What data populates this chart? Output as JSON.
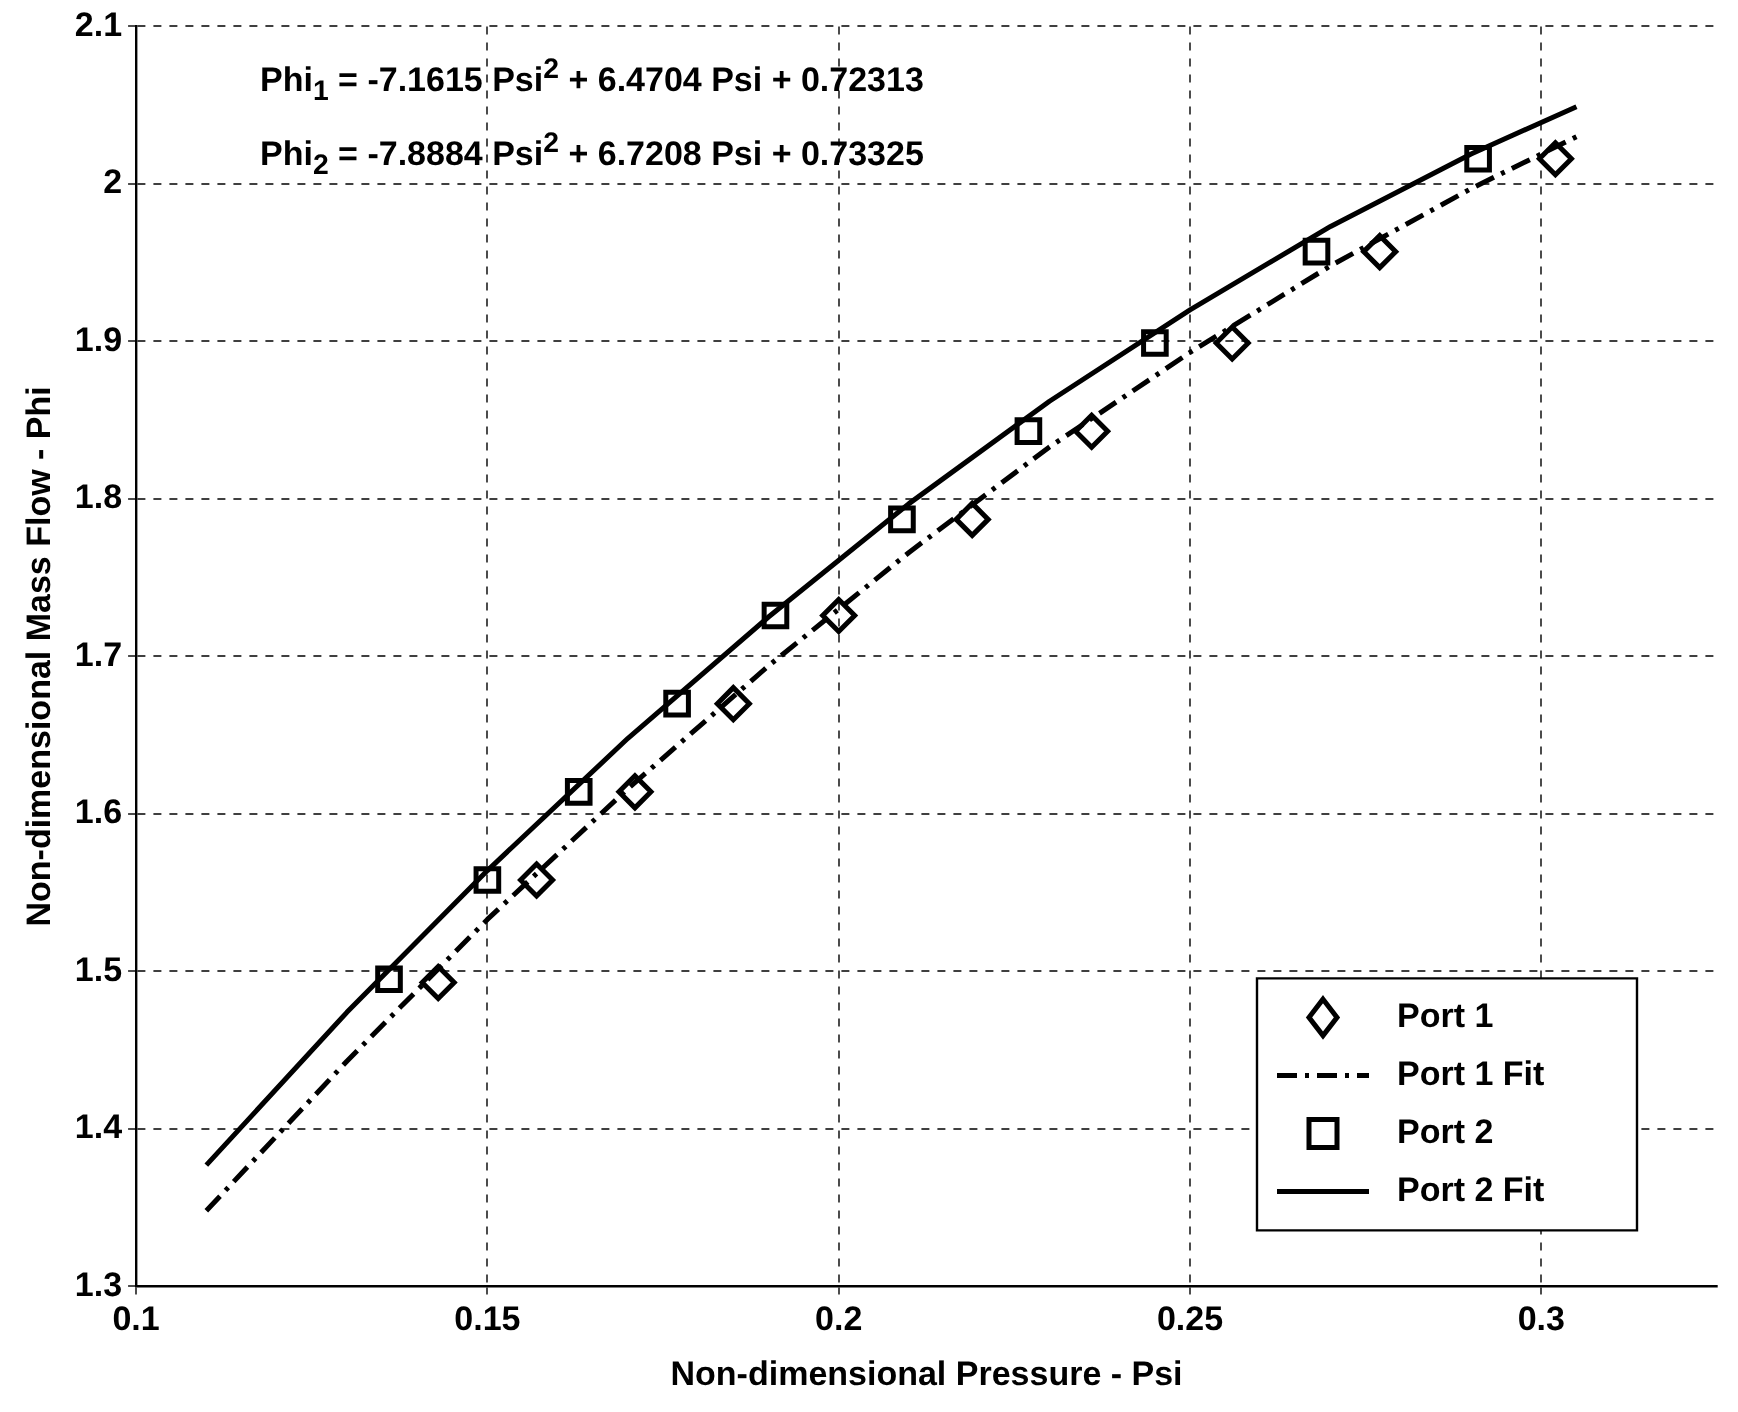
{
  "chart_data": {
    "type": "scatter",
    "xlabel": "Non-dimensional Pressure - Psi",
    "ylabel": "Non-dimensional Mass Flow - Phi",
    "annotations": [
      "Phi$_{1}$ = -7.1615 Psi$^{2}$ + 6.4704 Psi + 0.72313",
      "Phi$_{2}$ = -7.8884 Psi$^{2}$ + 6.7208 Psi + 0.73325"
    ],
    "series": [
      {
        "name": "Port 1",
        "type": "scatter",
        "marker": "diamond",
        "color": "#000000",
        "x": [
          0.143,
          0.157,
          0.171,
          0.185,
          0.2,
          0.219,
          0.236,
          0.256,
          0.277,
          0.302
        ],
        "values": [
          1.493,
          1.558,
          1.614,
          1.67,
          1.726,
          1.787,
          1.843,
          1.899,
          1.957,
          2.016
        ]
      },
      {
        "name": "Port 1 Fit",
        "type": "line",
        "marker": "none",
        "line_style": "dashed",
        "color": "#000000",
        "x": [
          0.11,
          0.13,
          0.15,
          0.17,
          0.19,
          0.21,
          0.23,
          0.25,
          0.27,
          0.29,
          0.305
        ],
        "values": [
          1.348,
          1.443,
          1.533,
          1.616,
          1.694,
          1.766,
          1.833,
          1.893,
          1.948,
          1.997,
          2.03
        ]
      },
      {
        "name": "Port 2",
        "type": "scatter",
        "marker": "square",
        "color": "#000000",
        "x": [
          0.136,
          0.15,
          0.163,
          0.177,
          0.191,
          0.209,
          0.227,
          0.245,
          0.268,
          0.291
        ],
        "values": [
          1.495,
          1.558,
          1.614,
          1.67,
          1.726,
          1.787,
          1.843,
          1.899,
          1.957,
          2.016
        ]
      },
      {
        "name": "Port 2 Fit",
        "type": "line",
        "marker": "none",
        "line_style": "solid",
        "color": "#000000",
        "x": [
          0.11,
          0.13,
          0.15,
          0.17,
          0.19,
          0.21,
          0.23,
          0.25,
          0.27,
          0.29,
          0.305
        ],
        "values": [
          1.377,
          1.474,
          1.564,
          1.648,
          1.725,
          1.797,
          1.862,
          1.92,
          1.973,
          2.019,
          2.049
        ]
      }
    ],
    "xlim": [
      0.1,
      0.325
    ],
    "xticks": [
      0.1,
      0.15,
      0.2,
      0.25,
      0.3
    ],
    "ylim": [
      1.3,
      2.1
    ],
    "yticks": [
      1.3,
      1.4,
      1.5,
      1.6,
      1.7,
      1.8,
      1.9,
      2,
      2.1
    ],
    "grid": true,
    "legend": "bottom right"
  }
}
